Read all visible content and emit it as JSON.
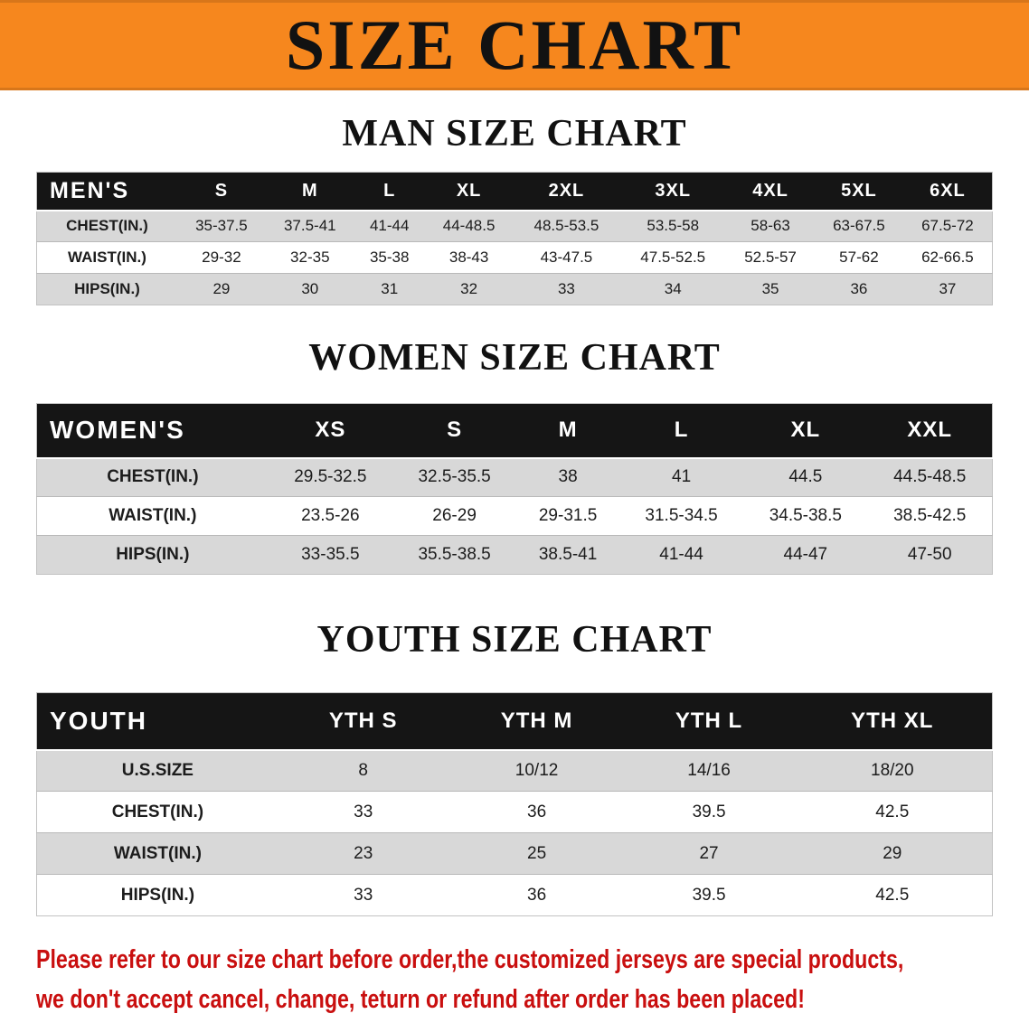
{
  "banner": {
    "title": "SIZE CHART"
  },
  "sections": [
    {
      "heading": "MAN SIZE CHART",
      "table": {
        "corner": "MEN'S",
        "columns": [
          "S",
          "M",
          "L",
          "XL",
          "2XL",
          "3XL",
          "4XL",
          "5XL",
          "6XL"
        ],
        "rows": [
          {
            "label": "CHEST(IN.)",
            "values": [
              "35-37.5",
              "37.5-41",
              "41-44",
              "44-48.5",
              "48.5-53.5",
              "53.5-58",
              "58-63",
              "63-67.5",
              "67.5-72"
            ]
          },
          {
            "label": "WAIST(IN.)",
            "values": [
              "29-32",
              "32-35",
              "35-38",
              "38-43",
              "43-47.5",
              "47.5-52.5",
              "52.5-57",
              "57-62",
              "62-66.5"
            ]
          },
          {
            "label": "HIPS(IN.)",
            "values": [
              "29",
              "30",
              "31",
              "32",
              "33",
              "34",
              "35",
              "36",
              "37"
            ]
          }
        ]
      }
    },
    {
      "heading": "WOMEN SIZE CHART",
      "table": {
        "corner": "WOMEN'S",
        "columns": [
          "XS",
          "S",
          "M",
          "L",
          "XL",
          "XXL"
        ],
        "rows": [
          {
            "label": "CHEST(IN.)",
            "values": [
              "29.5-32.5",
              "32.5-35.5",
              "38",
              "41",
              "44.5",
              "44.5-48.5"
            ]
          },
          {
            "label": "WAIST(IN.)",
            "values": [
              "23.5-26",
              "26-29",
              "29-31.5",
              "31.5-34.5",
              "34.5-38.5",
              "38.5-42.5"
            ]
          },
          {
            "label": "HIPS(IN.)",
            "values": [
              "33-35.5",
              "35.5-38.5",
              "38.5-41",
              "41-44",
              "44-47",
              "47-50"
            ]
          }
        ]
      }
    },
    {
      "heading": "YOUTH SIZE CHART",
      "table": {
        "corner": "YOUTH",
        "columns": [
          "YTH S",
          "YTH M",
          "YTH L",
          "YTH XL"
        ],
        "rows": [
          {
            "label": "U.S.SIZE",
            "values": [
              "8",
              "10/12",
              "14/16",
              "18/20"
            ]
          },
          {
            "label": "CHEST(IN.)",
            "values": [
              "33",
              "36",
              "39.5",
              "42.5"
            ]
          },
          {
            "label": "WAIST(IN.)",
            "values": [
              "23",
              "25",
              "27",
              "29"
            ]
          },
          {
            "label": "HIPS(IN.)",
            "values": [
              "33",
              "36",
              "39.5",
              "42.5"
            ]
          }
        ]
      }
    }
  ],
  "footer": {
    "line1": "Please refer to our size chart before order,the customized jerseys are special products,",
    "line2": "we don't accept cancel, change, teturn or refund after order has been placed!"
  },
  "colors": {
    "banner_bg": "#f6871e",
    "title_color": "#121212",
    "header_bg": "#151515",
    "header_text": "#ffffff",
    "row_alt_bg": "#d8d8d8",
    "row_bg": "#ffffff",
    "text": "#1c1c1c",
    "footer_red": "#c90f0f"
  }
}
